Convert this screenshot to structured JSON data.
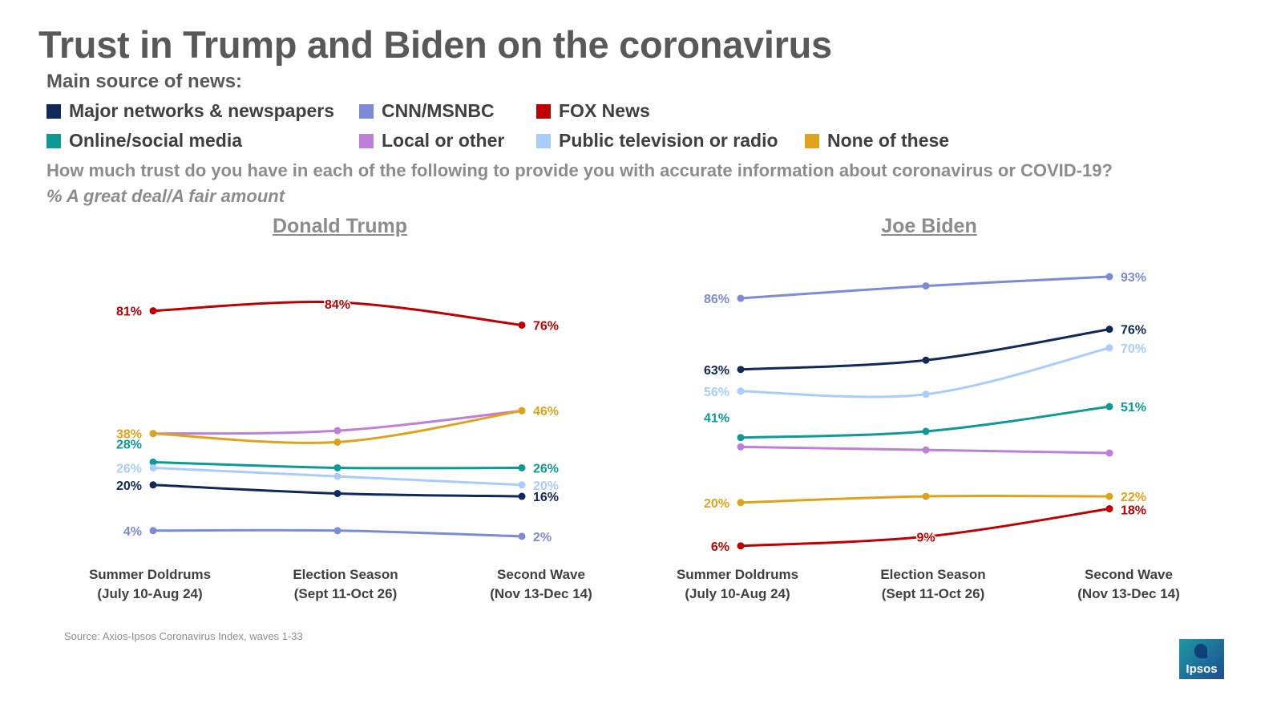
{
  "title": "Trust in Trump and Biden on the coronavirus",
  "subtitle": "Main source of news:",
  "legend": [
    {
      "label": "Major networks & newspapers",
      "color": "#0f2a5a"
    },
    {
      "label": "CNN/MSNBC",
      "color": "#7d8ad6"
    },
    {
      "label": "FOX News",
      "color": "#c00000"
    },
    {
      "label": "Online/social media",
      "color": "#0d9a96"
    },
    {
      "label": "Local or other",
      "color": "#bf7fd8"
    },
    {
      "label": "Public television or radio",
      "color": "#a8ccff"
    },
    {
      "label": "None of these",
      "color": "#e0a21a"
    }
  ],
  "question": "How much trust do you have in each of the following to provide you with accurate information about coronavirus or COVID-19?",
  "metric": "% A great deal/A fair amount",
  "source": "Source: Axios-Ipsos Coronavirus Index, waves 1-33",
  "logo_text": "Ipsos",
  "chart_data": [
    {
      "type": "line",
      "title": "Donald Trump",
      "categories": [
        [
          "Summer Doldrums",
          "(July 10-Aug 24)"
        ],
        [
          "Election Season",
          "(Sept 11-Oct 26)"
        ],
        [
          "Second Wave",
          "(Nov 13-Dec 14)"
        ]
      ],
      "series": [
        {
          "name": "Major networks & newspapers",
          "values": [
            20,
            17,
            16
          ],
          "labels": [
            "20%",
            null,
            "16%"
          ],
          "color": "#0f2a5a"
        },
        {
          "name": "CNN/MSNBC",
          "values": [
            4,
            4,
            2
          ],
          "labels": [
            "4%",
            null,
            "2%"
          ],
          "color": "#7d8ad6"
        },
        {
          "name": "FOX News",
          "values": [
            81,
            84,
            76
          ],
          "labels": [
            "81%",
            "84%",
            "76%"
          ],
          "color": "#c00000"
        },
        {
          "name": "Online/social media",
          "values": [
            28,
            26,
            26
          ],
          "labels": [
            "28%",
            null,
            "26%"
          ],
          "color": "#0d9a96"
        },
        {
          "name": "Local or other",
          "values": [
            38,
            39,
            46
          ],
          "labels": [
            null,
            null,
            null
          ],
          "color": "#bf7fd8"
        },
        {
          "name": "Public television or radio",
          "values": [
            26,
            23,
            20
          ],
          "labels": [
            "26%",
            null,
            "20%"
          ],
          "color": "#a8ccff"
        },
        {
          "name": "None of these",
          "values": [
            38,
            35,
            46
          ],
          "labels": [
            "38%",
            null,
            "46%"
          ],
          "color": "#e0a21a"
        }
      ]
    },
    {
      "type": "line",
      "title": "Joe Biden",
      "categories": [
        [
          "Summer Doldrums",
          "(July 10-Aug 24)"
        ],
        [
          "Election Season",
          "(Sept 11-Oct 26)"
        ],
        [
          "Second Wave",
          "(Nov 13-Dec 14)"
        ]
      ],
      "series": [
        {
          "name": "Major networks & newspapers",
          "values": [
            63,
            66,
            76
          ],
          "labels": [
            "63%",
            null,
            "76%"
          ],
          "color": "#0f2a5a"
        },
        {
          "name": "CNN/MSNBC",
          "values": [
            86,
            90,
            93
          ],
          "labels": [
            "86%",
            null,
            "93%"
          ],
          "color": "#7d8ad6"
        },
        {
          "name": "FOX News",
          "values": [
            6,
            9,
            18
          ],
          "labels": [
            "6%",
            "9%",
            "18%"
          ],
          "color": "#c00000"
        },
        {
          "name": "Online/social media",
          "values": [
            41,
            43,
            51
          ],
          "labels": [
            "41%",
            null,
            "51%"
          ],
          "color": "#0d9a96"
        },
        {
          "name": "Local or other",
          "values": [
            38,
            37,
            36
          ],
          "labels": [
            null,
            null,
            null
          ],
          "color": "#bf7fd8"
        },
        {
          "name": "Public television or radio",
          "values": [
            56,
            55,
            70
          ],
          "labels": [
            "56%",
            null,
            "70%"
          ],
          "color": "#a8ccff"
        },
        {
          "name": "None of these",
          "values": [
            20,
            22,
            22
          ],
          "labels": [
            "20%",
            null,
            "22%"
          ],
          "color": "#e0a21a"
        }
      ]
    }
  ]
}
